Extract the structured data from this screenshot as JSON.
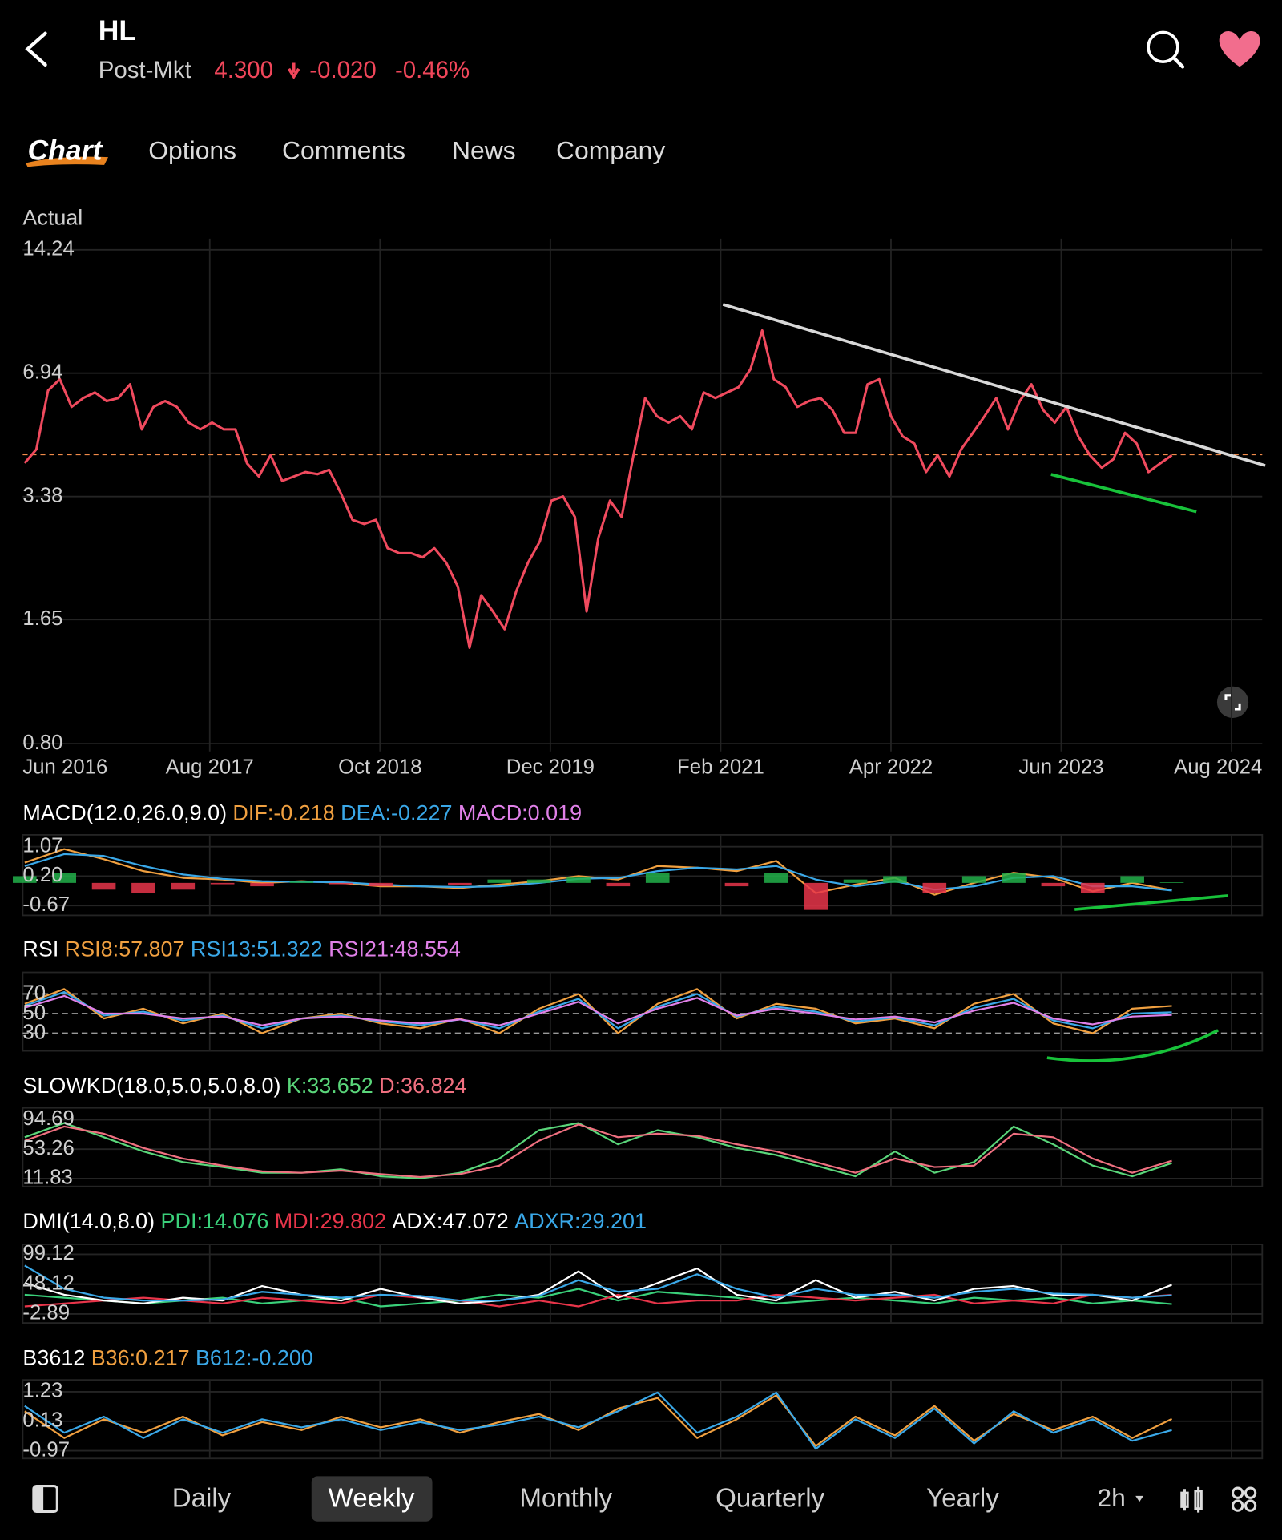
{
  "header": {
    "symbol": "HL",
    "session": "Post-Mkt",
    "price": "4.300",
    "change": "-0.020",
    "change_pct": "-0.46%"
  },
  "tabs": [
    "Chart",
    "Options",
    "Comments",
    "News",
    "Company"
  ],
  "chart_data": [
    {
      "type": "line",
      "title": "Actual",
      "log_scale": true,
      "grid": true,
      "ylim": [
        0.765,
        15.2
      ],
      "yticks": [
        14.24,
        6.94,
        3.38,
        1.65,
        {
          "value": 0.8,
          "label": "0.80"
        }
      ],
      "xticks": [
        "Jun 2016",
        "Aug 2017",
        "Oct 2018",
        "Dec 2019",
        "Feb 2021",
        "Apr 2022",
        "Jun 2023",
        "Aug 2024"
      ],
      "reference_line": 4.32,
      "series": [
        {
          "color": "#f04a5e",
          "values": [
            4.11,
            4.45,
            6.27,
            6.7,
            5.7,
            6.0,
            6.2,
            5.9,
            6.0,
            6.5,
            5.0,
            5.7,
            5.9,
            5.7,
            5.2,
            5.0,
            5.2,
            5.0,
            5.0,
            4.1,
            3.8,
            4.3,
            3.7,
            3.8,
            3.9,
            3.85,
            3.95,
            3.45,
            2.95,
            2.88,
            2.95,
            2.5,
            2.43,
            2.43,
            2.37,
            2.5,
            2.3,
            2.0,
            1.4,
            1.9,
            1.73,
            1.56,
            1.95,
            2.3,
            2.6,
            3.3,
            3.38,
            3.0,
            1.73,
            2.65,
            3.3,
            3.0,
            4.3,
            6.0,
            5.4,
            5.2,
            5.4,
            5.0,
            6.2,
            6.0,
            6.2,
            6.4,
            7.1,
            8.9,
            6.7,
            6.4,
            5.7,
            5.9,
            6.0,
            5.6,
            4.9,
            4.9,
            6.5,
            6.7,
            5.4,
            4.8,
            4.6,
            3.9,
            4.3,
            3.8,
            4.45,
            4.9,
            5.4,
            6.0,
            5.0,
            5.9,
            6.5,
            5.6,
            5.2,
            5.7,
            4.8,
            4.3,
            4.0,
            4.2,
            4.9,
            4.6,
            3.9,
            4.1,
            4.3
          ]
        }
      ]
    },
    {
      "type": "line",
      "title": "MACD(12.0,26.0,9.0)",
      "grid": true,
      "ylim": [
        -0.96,
        1.42
      ],
      "yticks": [
        1.07,
        {
          "value": 0.2,
          "label": "0.20"
        },
        -0.67
      ],
      "series": [
        {
          "label": "DIF:-0.218",
          "color": "#f0a040",
          "values": [
            0.6,
            1.0,
            0.7,
            0.35,
            0.15,
            0.1,
            0.0,
            0.05,
            0.0,
            -0.1,
            -0.1,
            -0.15,
            -0.05,
            0.05,
            0.2,
            0.1,
            0.5,
            0.45,
            0.35,
            0.65,
            -0.3,
            -0.05,
            0.15,
            -0.35,
            0.0,
            0.3,
            0.15,
            -0.25,
            0.0,
            -0.218
          ]
        },
        {
          "label": "DEA:-0.227",
          "color": "#3aa8e8",
          "values": [
            0.5,
            0.85,
            0.8,
            0.5,
            0.25,
            0.12,
            0.05,
            0.03,
            0.02,
            -0.05,
            -0.1,
            -0.12,
            -0.1,
            0.0,
            0.12,
            0.15,
            0.35,
            0.45,
            0.4,
            0.5,
            0.1,
            -0.1,
            0.05,
            -0.2,
            -0.1,
            0.15,
            0.2,
            -0.1,
            -0.1,
            -0.227
          ]
        },
        {
          "label": "MACD:0.019",
          "color": "#e080e8",
          "kind": "bar",
          "up_color": "#22b04a",
          "down_color": "#e8354a",
          "values": [
            0.2,
            0.3,
            -0.2,
            -0.3,
            -0.2,
            -0.04,
            -0.1,
            0.04,
            -0.04,
            -0.1,
            0,
            -0.06,
            0.1,
            0.1,
            0.16,
            -0.1,
            0.3,
            0,
            -0.1,
            0.3,
            -0.8,
            0.1,
            0.2,
            -0.3,
            0.2,
            0.3,
            -0.1,
            -0.3,
            0.2,
            0.019
          ]
        }
      ]
    },
    {
      "type": "line",
      "title": "RSI",
      "grid": true,
      "grid_style": "dashed",
      "ylim": [
        12,
        92
      ],
      "yticks": [
        70,
        50,
        30
      ],
      "series": [
        {
          "label": "RSI8:57.807",
          "color": "#f0a040",
          "values": [
            60,
            75,
            45,
            55,
            40,
            50,
            30,
            45,
            50,
            40,
            35,
            45,
            30,
            55,
            70,
            30,
            60,
            75,
            45,
            60,
            55,
            40,
            45,
            35,
            60,
            70,
            40,
            30,
            55,
            57.807
          ]
        },
        {
          "label": "RSI13:51.322",
          "color": "#3aa8e8",
          "values": [
            58,
            72,
            48,
            52,
            43,
            48,
            35,
            45,
            48,
            42,
            38,
            44,
            35,
            52,
            65,
            35,
            57,
            70,
            47,
            57,
            52,
            42,
            46,
            38,
            56,
            65,
            43,
            35,
            50,
            51.322
          ]
        },
        {
          "label": "RSI21:48.554",
          "color": "#e080e8",
          "values": [
            56,
            68,
            50,
            50,
            45,
            47,
            38,
            45,
            47,
            43,
            40,
            44,
            38,
            50,
            62,
            40,
            55,
            66,
            48,
            55,
            50,
            44,
            47,
            41,
            53,
            61,
            45,
            39,
            47,
            48.554
          ]
        }
      ]
    },
    {
      "type": "line",
      "title": "SLOWKD(18.0,5.0,5.0,8.0)",
      "grid": true,
      "ylim": [
        0.78,
        111.3
      ],
      "yticks": [
        94.69,
        53.26,
        11.83
      ],
      "series": [
        {
          "label": "K:33.652",
          "color": "#5ad67a",
          "values": [
            70,
            90,
            70,
            50,
            35,
            28,
            20,
            20,
            25,
            15,
            12,
            20,
            40,
            80,
            90,
            60,
            80,
            70,
            55,
            45,
            30,
            15,
            50,
            20,
            35,
            85,
            60,
            30,
            15,
            33.652
          ]
        },
        {
          "label": "D:36.824",
          "color": "#f07080",
          "values": [
            65,
            85,
            75,
            55,
            40,
            30,
            22,
            20,
            23,
            18,
            14,
            18,
            30,
            65,
            88,
            70,
            75,
            72,
            60,
            50,
            35,
            20,
            40,
            28,
            30,
            75,
            70,
            40,
            20,
            36.824
          ]
        }
      ]
    },
    {
      "type": "line",
      "title": "DMI(14.0,8.0)",
      "grid": true,
      "ylim": [
        -18.2,
        116.1
      ],
      "yticks": [
        99.12,
        48.12,
        -2.89
      ],
      "series": [
        {
          "label": "PDI:14.076",
          "color": "#3ad07a",
          "values": [
            30,
            25,
            20,
            15,
            20,
            25,
            15,
            20,
            25,
            10,
            15,
            20,
            30,
            25,
            40,
            20,
            35,
            30,
            25,
            15,
            20,
            25,
            20,
            15,
            25,
            20,
            25,
            15,
            20,
            14.076
          ]
        },
        {
          "label": "MDI:29.802",
          "color": "#e8354a",
          "values": [
            10,
            15,
            20,
            25,
            20,
            15,
            25,
            20,
            15,
            30,
            25,
            20,
            10,
            20,
            10,
            30,
            15,
            20,
            20,
            30,
            25,
            20,
            25,
            30,
            15,
            20,
            15,
            30,
            25,
            29.802
          ]
        },
        {
          "label": "ADX:47.072",
          "color": "#ffffff",
          "values": [
            50,
            30,
            20,
            15,
            25,
            20,
            45,
            30,
            20,
            40,
            25,
            15,
            20,
            30,
            70,
            25,
            50,
            75,
            30,
            20,
            55,
            25,
            35,
            20,
            40,
            45,
            30,
            30,
            20,
            47.072
          ]
        },
        {
          "label": "ADXR:29.201",
          "color": "#3aa8e8",
          "values": [
            80,
            40,
            25,
            20,
            20,
            22,
            35,
            30,
            25,
            30,
            28,
            20,
            20,
            28,
            55,
            35,
            40,
            65,
            40,
            25,
            40,
            30,
            30,
            25,
            35,
            40,
            32,
            30,
            25,
            29.201
          ]
        }
      ]
    },
    {
      "type": "line",
      "title": "B3612",
      "grid": true,
      "ylim": [
        -1.26,
        1.67
      ],
      "yticks": [
        1.23,
        0.13,
        -0.97
      ],
      "series": [
        {
          "label": "B36:0.217",
          "color": "#f0a040",
          "values": [
            0.5,
            -0.5,
            0.2,
            -0.3,
            0.3,
            -0.4,
            0.1,
            -0.2,
            0.3,
            -0.1,
            0.2,
            -0.3,
            0.1,
            0.4,
            -0.2,
            0.6,
            1.0,
            -0.5,
            0.2,
            1.1,
            -0.8,
            0.3,
            -0.4,
            0.7,
            -0.6,
            0.4,
            -0.2,
            0.3,
            -0.5,
            0.217
          ]
        },
        {
          "label": "B612:-0.200",
          "color": "#3aa8e8",
          "values": [
            0.7,
            -0.3,
            0.3,
            -0.5,
            0.2,
            -0.3,
            0.2,
            -0.1,
            0.2,
            -0.2,
            0.1,
            -0.2,
            0.0,
            0.3,
            -0.1,
            0.5,
            1.2,
            -0.3,
            0.3,
            1.2,
            -0.9,
            0.2,
            -0.5,
            0.6,
            -0.7,
            0.5,
            -0.3,
            0.2,
            -0.6,
            -0.2
          ]
        }
      ]
    }
  ],
  "bottom_bar": {
    "periods": [
      "Daily",
      "Weekly",
      "Monthly",
      "Quarterly",
      "Yearly"
    ],
    "active": 1,
    "interval": "2h"
  }
}
